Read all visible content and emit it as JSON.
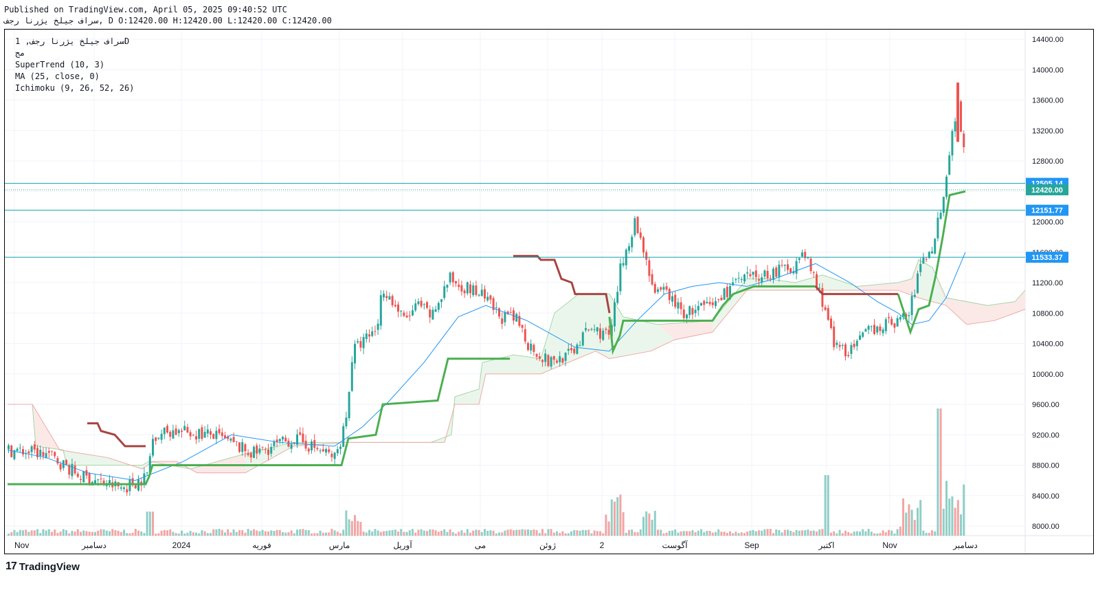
{
  "header": {
    "published": "Published on TradingView.com, April 05, 2025 09:40:52 UTC",
    "ohlc_line": "سراف جیلخ یژرنا رجف, D O:12420.00 H:12420.00 L:12420.00 C:12420.00"
  },
  "legend": {
    "symbol": "سراف جیلخ یژرنا رجف, 1D",
    "exchange": "مج",
    "supertrend": "SuperTrend (10, 3)",
    "ma": "MA (25, close, 0)",
    "ichimoku": "Ichimoku (9, 26, 52, 26)"
  },
  "brand": {
    "logo_mark": "17",
    "name": "TradingView"
  },
  "colors": {
    "up": "#26a69a",
    "down": "#ef5350",
    "st_up": "#4caf50",
    "st_down": "#a94442",
    "ma": "#2196f3",
    "cloud_green": "#c8e6c9",
    "cloud_red": "#f8d7d6",
    "vol_up": "#8fcfc6",
    "vol_down": "#f3a5a3",
    "hline": "#0a9fb0"
  },
  "chart_data": {
    "type": "candlestick",
    "ylim": [
      7900,
      14500
    ],
    "y_ticks": [
      "14400.00",
      "14000.00",
      "13600.00",
      "13200.00",
      "12800.00",
      "12400.00",
      "12000.00",
      "11600.00",
      "11200.00",
      "10800.00",
      "10400.00",
      "10000.00",
      "9600.00",
      "9200.00",
      "8800.00",
      "8400.00",
      "8000.00"
    ],
    "x_labels": [
      "Nov",
      "دسامبر",
      "2024",
      "فوریه",
      "مارس",
      "آوریل",
      "می",
      "ژوئن",
      "2",
      "آگوست",
      "Sep",
      "اکتبر",
      "Nov",
      "دسامبر"
    ],
    "price_lines": [
      {
        "label": "12505.14",
        "value": 12505.14,
        "color": "#2196f3",
        "style": "solid"
      },
      {
        "label": "12420.00",
        "value": 12420.0,
        "color": "#26a69a",
        "style": "dotted"
      },
      {
        "label": "12151.77",
        "value": 12151.77,
        "color": "#2196f3",
        "style": "solid"
      },
      {
        "label": "11533.37",
        "value": 11533.37,
        "color": "#2196f3",
        "style": "solid"
      }
    ],
    "indicators": [
      "SuperTrend (10, 3)",
      "MA (25, close, 0)",
      "Ichimoku (9, 26, 52, 26)"
    ],
    "grid": true
  }
}
